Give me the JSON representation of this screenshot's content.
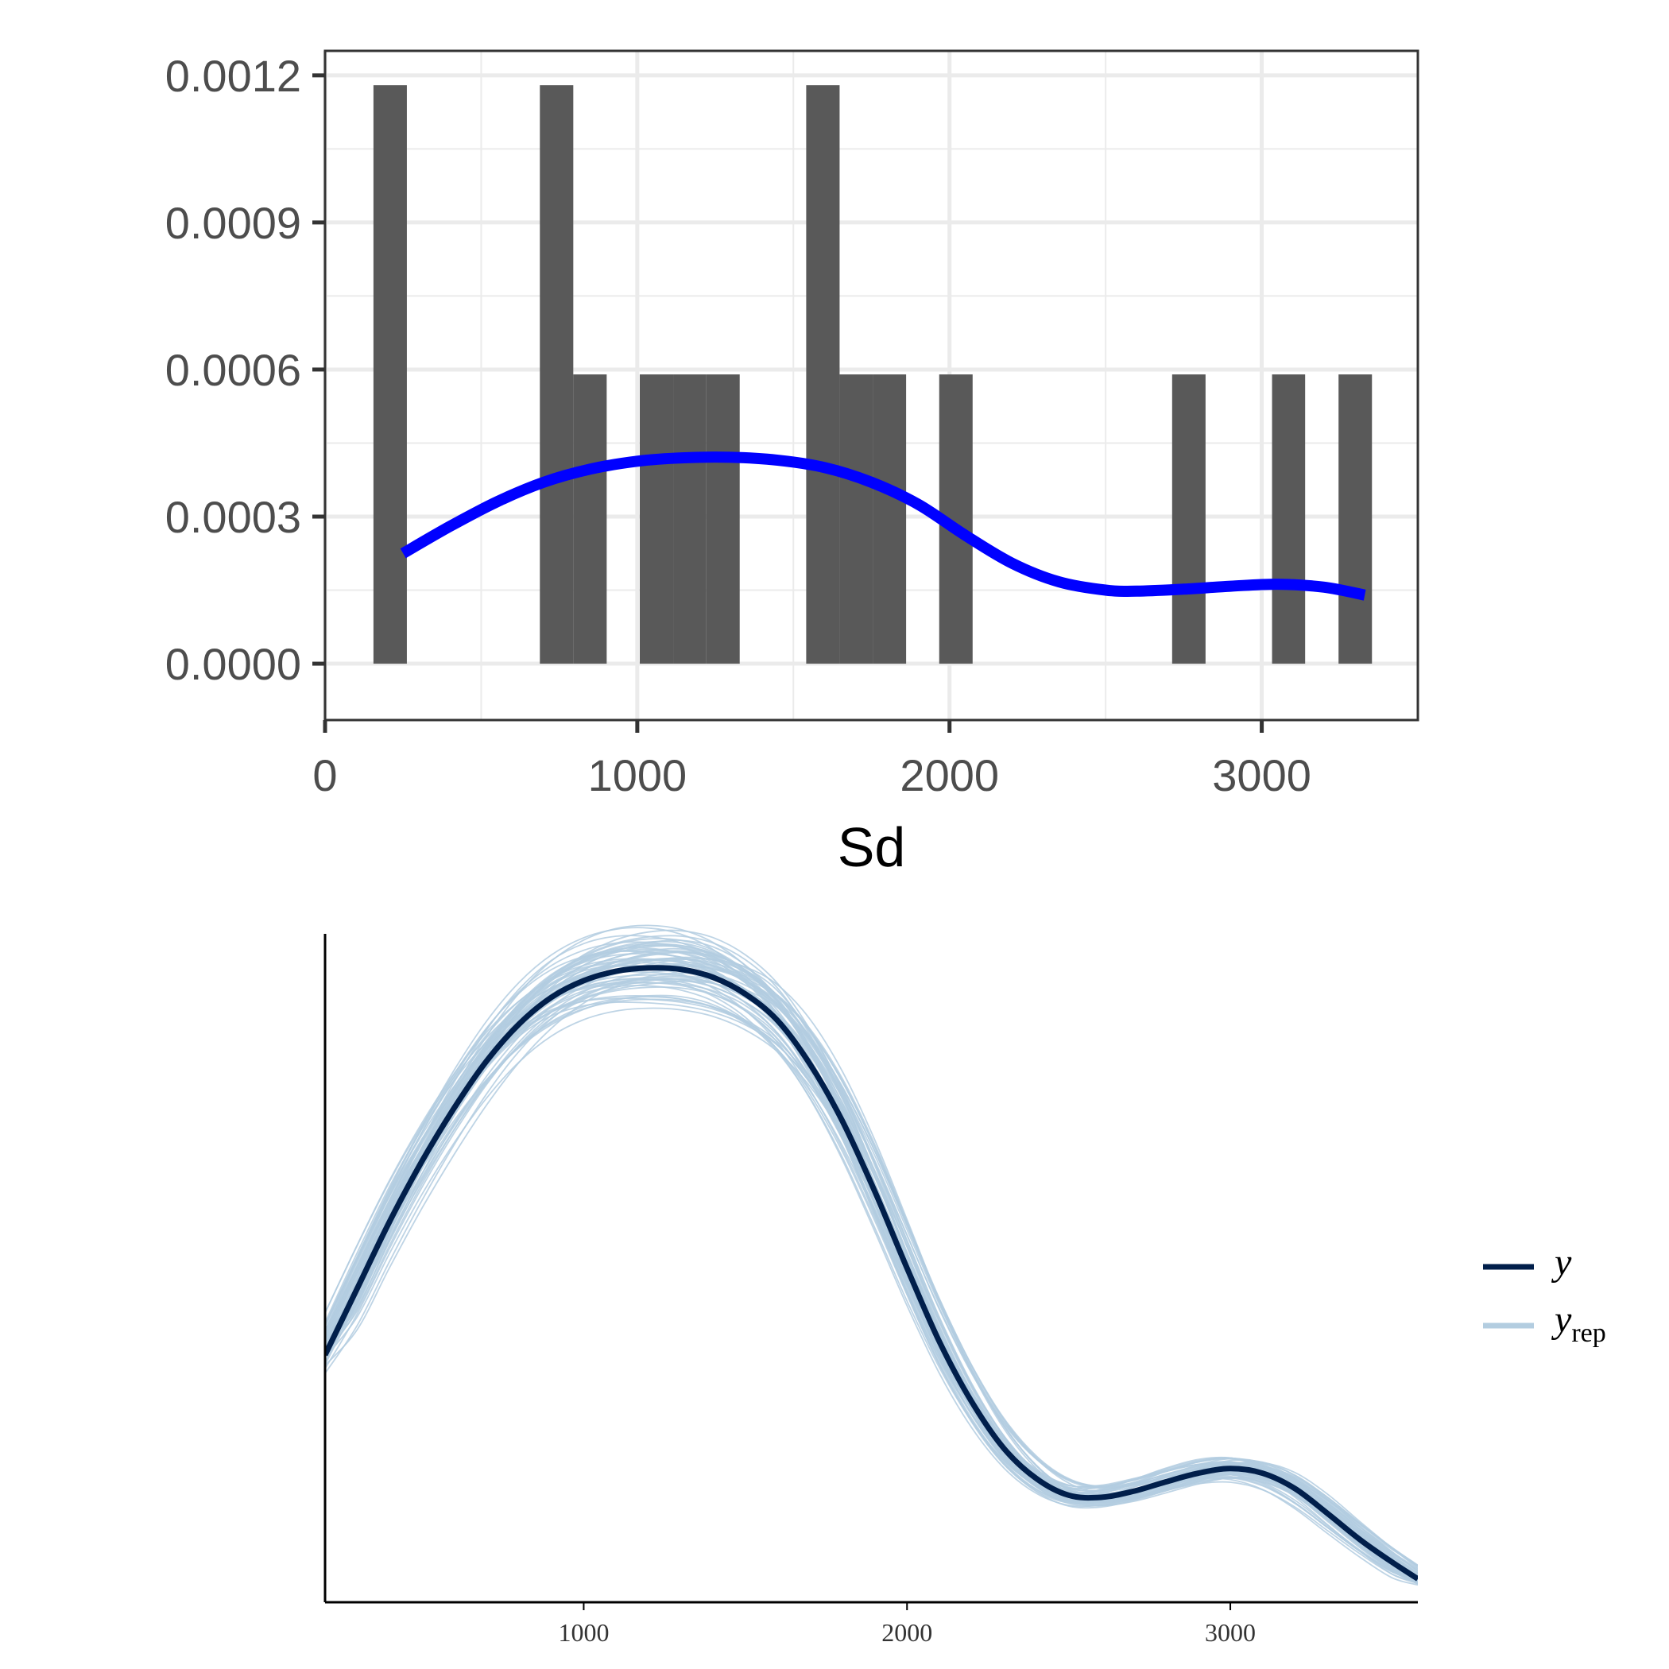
{
  "chart_data": [
    {
      "type": "bar",
      "xlabel": "Sd",
      "ylabel": "",
      "xlim": [
        0,
        3500
      ],
      "ylim": [
        -0.000115,
        0.00125
      ],
      "x_ticks": [
        "0",
        "1000",
        "2000",
        "3000"
      ],
      "x_tick_values": [
        0,
        1000,
        2000,
        3000
      ],
      "y_ticks": [
        "0.0000",
        "0.0003",
        "0.0006",
        "0.0009",
        "0.0012"
      ],
      "y_tick_values": [
        0,
        0.0003,
        0.0006,
        0.0009,
        0.0012
      ],
      "grid": true,
      "bar_color": "#595959",
      "bins": [
        {
          "x0": 155,
          "x1": 262,
          "value": 0.00118
        },
        {
          "x0": 688,
          "x1": 795,
          "value": 0.00118
        },
        {
          "x0": 795,
          "x1": 902,
          "value": 0.00059
        },
        {
          "x0": 1008,
          "x1": 1115,
          "value": 0.00059
        },
        {
          "x0": 1115,
          "x1": 1221,
          "value": 0.00059
        },
        {
          "x0": 1221,
          "x1": 1328,
          "value": 0.00059
        },
        {
          "x0": 1541,
          "x1": 1648,
          "value": 0.00118
        },
        {
          "x0": 1648,
          "x1": 1754,
          "value": 0.00059
        },
        {
          "x0": 1754,
          "x1": 1861,
          "value": 0.00059
        },
        {
          "x0": 1967,
          "x1": 2074,
          "value": 0.00059
        },
        {
          "x0": 2713,
          "x1": 2820,
          "value": 0.00059
        },
        {
          "x0": 3033,
          "x1": 3139,
          "value": 0.00059
        },
        {
          "x0": 3246,
          "x1": 3353,
          "value": 0.00059
        }
      ],
      "density_curve": {
        "color": "#0000ff",
        "x": [
          250,
          400,
          550,
          700,
          850,
          1000,
          1150,
          1300,
          1450,
          1600,
          1750,
          1900,
          2050,
          2200,
          2350,
          2500,
          2600,
          2750,
          2900,
          3050,
          3200,
          3330
        ],
        "y": [
          0.000225,
          0.00028,
          0.00033,
          0.00037,
          0.000397,
          0.000413,
          0.00042,
          0.000421,
          0.000415,
          0.0004,
          0.00037,
          0.000325,
          0.000262,
          0.000205,
          0.000167,
          0.00015,
          0.000148,
          0.000152,
          0.000158,
          0.000162,
          0.000156,
          0.00014
        ]
      }
    },
    {
      "type": "line",
      "xlabel": "",
      "ylabel": "",
      "xlim": [
        200,
        3580
      ],
      "ylim": [
        0,
        1
      ],
      "x_ticks": [
        "1000",
        "2000",
        "3000"
      ],
      "x_tick_values": [
        1000,
        2000,
        3000
      ],
      "y_axis_labels": false,
      "grid": false,
      "legend_position": "right",
      "series": [
        {
          "name": "y",
          "color": "#011f4b",
          "x": [
            200,
            300,
            400,
            500,
            600,
            700,
            800,
            900,
            1000,
            1100,
            1200,
            1300,
            1400,
            1500,
            1600,
            1700,
            1800,
            1900,
            2000,
            2100,
            2200,
            2300,
            2400,
            2500,
            2600,
            2700,
            2800,
            2900,
            3000,
            3100,
            3200,
            3300,
            3400,
            3500,
            3580
          ],
          "y": [
            0.37,
            0.47,
            0.57,
            0.66,
            0.74,
            0.81,
            0.865,
            0.905,
            0.93,
            0.944,
            0.949,
            0.947,
            0.935,
            0.91,
            0.87,
            0.805,
            0.72,
            0.615,
            0.5,
            0.39,
            0.3,
            0.23,
            0.185,
            0.16,
            0.157,
            0.166,
            0.18,
            0.193,
            0.2,
            0.193,
            0.17,
            0.133,
            0.094,
            0.06,
            0.035
          ]
        },
        {
          "name": "y_rep",
          "name_main": "y",
          "name_sub": "rep",
          "color": "#b3cde0",
          "replicates": 60
        }
      ]
    }
  ]
}
